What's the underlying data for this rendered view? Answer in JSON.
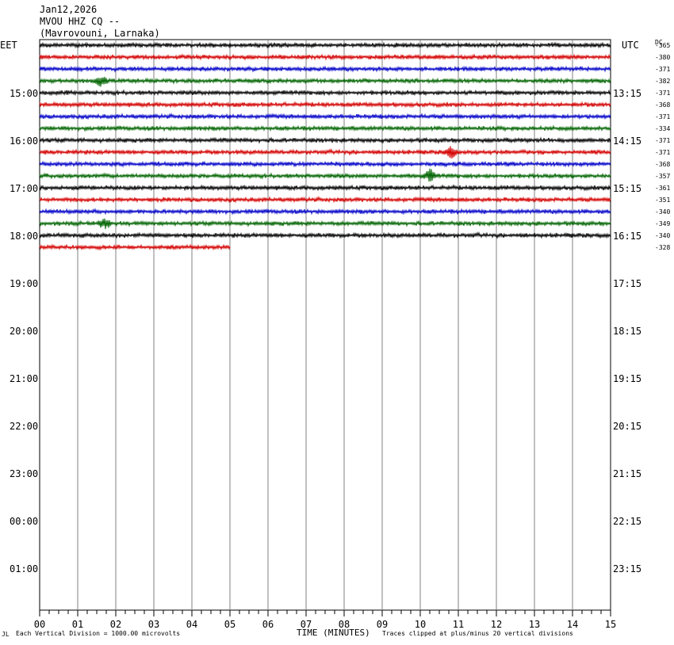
{
  "header": {
    "date": "Jan12,2026",
    "station": "MVOU HHZ CQ --",
    "location": "(Mavrovouni, Larnaka)"
  },
  "left_tz": "EET",
  "right_tz": "UTC",
  "dc_header": "DC",
  "left_hours": [
    "15:00",
    "16:00",
    "17:00",
    "18:00",
    "19:00",
    "20:00",
    "21:00",
    "22:00",
    "23:00",
    "00:00",
    "01:00"
  ],
  "right_hours": [
    "13:15",
    "14:15",
    "15:15",
    "16:15",
    "17:15",
    "18:15",
    "19:15",
    "20:15",
    "21:15",
    "22:15",
    "23:15"
  ],
  "x_ticks": [
    "00",
    "01",
    "02",
    "03",
    "04",
    "05",
    "06",
    "07",
    "08",
    "09",
    "10",
    "11",
    "12",
    "13",
    "14",
    "15"
  ],
  "footer": {
    "left_note": "Each Vertical Division = 1000.00 microvolts",
    "axis_title": "TIME (MINUTES)",
    "right_note": "Traces clipped at plus/minus 20 vertical divisions"
  },
  "colors": {
    "trace_cycle": [
      "#000000",
      "#d40000",
      "#0000c8",
      "#006400"
    ],
    "grid": "#808080"
  },
  "chart_data": {
    "type": "line",
    "title": "MVOU HHZ CQ --",
    "xlabel": "TIME (MINUTES)",
    "xlim": [
      0,
      15
    ],
    "rows_per_hour": 4,
    "minutes_per_row": 15,
    "traces": [
      {
        "row": 0,
        "dc": "-365",
        "end_minute": 15,
        "event": null
      },
      {
        "row": 1,
        "dc": "-380",
        "end_minute": 15,
        "event": null
      },
      {
        "row": 2,
        "dc": "-371",
        "end_minute": 15,
        "event": null
      },
      {
        "row": 3,
        "dc": "-382",
        "end_minute": 15,
        "event": 1.6
      },
      {
        "row": 4,
        "dc": "-371",
        "end_minute": 15,
        "event": null
      },
      {
        "row": 5,
        "dc": "-368",
        "end_minute": 15,
        "event": null
      },
      {
        "row": 6,
        "dc": "-371",
        "end_minute": 15,
        "event": null
      },
      {
        "row": 7,
        "dc": "-334",
        "end_minute": 15,
        "event": null
      },
      {
        "row": 8,
        "dc": "-371",
        "end_minute": 15,
        "event": null
      },
      {
        "row": 9,
        "dc": "-371",
        "end_minute": 15,
        "event": 10.8
      },
      {
        "row": 10,
        "dc": "-368",
        "end_minute": 15,
        "event": null
      },
      {
        "row": 11,
        "dc": "-357",
        "end_minute": 15,
        "event": 10.25
      },
      {
        "row": 12,
        "dc": "-361",
        "end_minute": 15,
        "event": null
      },
      {
        "row": 13,
        "dc": "-351",
        "end_minute": 15,
        "event": null
      },
      {
        "row": 14,
        "dc": "-340",
        "end_minute": 15,
        "event": null
      },
      {
        "row": 15,
        "dc": "-349",
        "end_minute": 15,
        "event": 1.7
      },
      {
        "row": 16,
        "dc": "-340",
        "end_minute": 15,
        "event": null
      },
      {
        "row": 17,
        "dc": "-328",
        "end_minute": 5,
        "event": null
      }
    ]
  }
}
